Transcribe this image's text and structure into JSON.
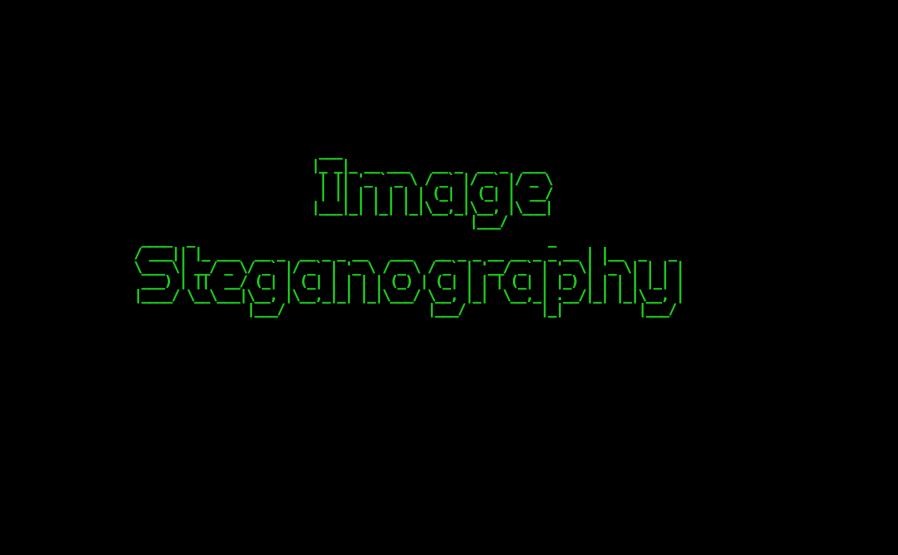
{
  "theme": {
    "background": "#000000",
    "text_color": "#1fd11f"
  },
  "banner": {
    "line1": "  ___                            \n |_ _|_ __ ___   __ _  __ _  ___ \n  | || '_ ` _ \\ / _` |/ _` |/ _ \\\n  | || | | | | | (_| | (_| |  __/\n |___|_| |_| |_|\\__,_|\\__, |\\___|\n                      |___/      ",
    "line2": " ____  _                                               _           \n/ ___|| |_ ___  __ _  __ _ _ __   ___   __ _ _ __ __ _ _ __ | |__  _   _ \n\\___ \\| __/ _ \\/ _` |/ _` | '_ \\ / _ \\ / _` | '__/ _` | '_ \\| '_ \\| | | |\n ___) | ||  __/ (_| | (_| | | | | (_) | (_| | | | (_| | |_) | | | | |_| |\n|____/ \\__\\___|\\__, |\\__,_|_| |_|\\___/ \\__, |_|  \\__,_| .__/|_| |_|\\__, |\n               |___/                   |___/          |_|          |___/ "
  }
}
